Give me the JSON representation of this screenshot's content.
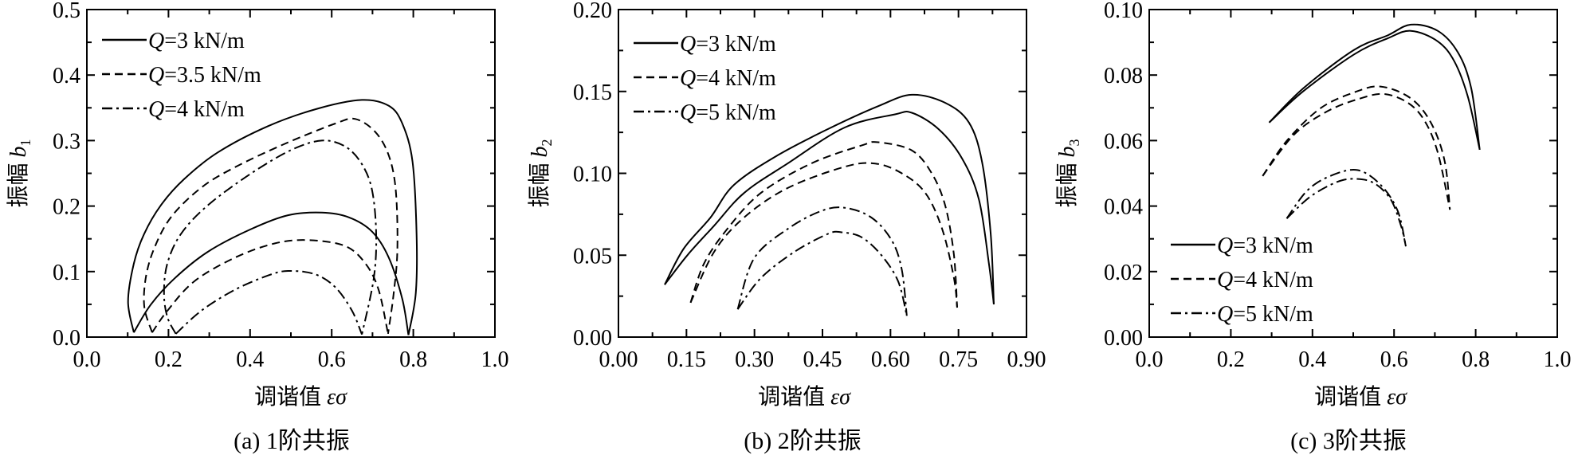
{
  "chart_data": [
    {
      "type": "line",
      "caption": "(a) 1阶共振",
      "xlabel_text": "调谐值",
      "xlabel_var": "εσ",
      "ylabel_text": "振幅",
      "ylabel_var": "b",
      "ylabel_sub": "1",
      "xlim": [
        0,
        1.0
      ],
      "ylim": [
        0,
        0.5
      ],
      "x_major": 0.2,
      "x_minor": 0.1,
      "y_major": 0.1,
      "y_minor": 0.05,
      "x_tick_labels": [
        "0.0",
        "0.2",
        "0.4",
        "0.6",
        "0.8",
        "1.0"
      ],
      "y_tick_labels": [
        "0.0",
        "0.1",
        "0.2",
        "0.3",
        "0.4",
        "0.5"
      ],
      "legend_position": "top-left",
      "series": [
        {
          "name": "Q=3 kN/m",
          "style": "solid",
          "upper": [
            [
              0.115,
              0.007
            ],
            [
              0.101,
              0.054
            ],
            [
              0.115,
              0.112
            ],
            [
              0.14,
              0.157
            ],
            [
              0.181,
              0.201
            ],
            [
              0.238,
              0.241
            ],
            [
              0.321,
              0.282
            ],
            [
              0.444,
              0.322
            ],
            [
              0.567,
              0.349
            ],
            [
              0.674,
              0.362
            ],
            [
              0.74,
              0.353
            ],
            [
              0.773,
              0.326
            ],
            [
              0.798,
              0.268
            ],
            [
              0.808,
              0.157
            ],
            [
              0.806,
              0.067
            ],
            [
              0.788,
              0.003
            ]
          ],
          "lower": [
            [
              0.115,
              0.007
            ],
            [
              0.156,
              0.049
            ],
            [
              0.214,
              0.089
            ],
            [
              0.296,
              0.13
            ],
            [
              0.403,
              0.165
            ],
            [
              0.493,
              0.186
            ],
            [
              0.576,
              0.19
            ],
            [
              0.641,
              0.183
            ],
            [
              0.699,
              0.161
            ],
            [
              0.74,
              0.121
            ],
            [
              0.773,
              0.058
            ],
            [
              0.788,
              0.003
            ]
          ]
        },
        {
          "name": "Q=3.5 kN/m",
          "style": "dashed",
          "upper": [
            [
              0.16,
              0.007
            ],
            [
              0.141,
              0.045
            ],
            [
              0.144,
              0.089
            ],
            [
              0.164,
              0.134
            ],
            [
              0.206,
              0.183
            ],
            [
              0.28,
              0.228
            ],
            [
              0.362,
              0.259
            ],
            [
              0.485,
              0.295
            ],
            [
              0.609,
              0.326
            ],
            [
              0.658,
              0.333
            ],
            [
              0.707,
              0.313
            ],
            [
              0.74,
              0.277
            ],
            [
              0.757,
              0.224
            ],
            [
              0.761,
              0.134
            ],
            [
              0.752,
              0.067
            ],
            [
              0.738,
              0.005
            ]
          ],
          "lower": [
            [
              0.16,
              0.007
            ],
            [
              0.197,
              0.04
            ],
            [
              0.263,
              0.085
            ],
            [
              0.362,
              0.121
            ],
            [
              0.46,
              0.143
            ],
            [
              0.543,
              0.148
            ],
            [
              0.633,
              0.139
            ],
            [
              0.683,
              0.112
            ],
            [
              0.715,
              0.072
            ],
            [
              0.738,
              0.005
            ]
          ]
        },
        {
          "name": "Q=4 kN/m",
          "style": "dashdot",
          "upper": [
            [
              0.218,
              0.005
            ],
            [
              0.197,
              0.031
            ],
            [
              0.189,
              0.067
            ],
            [
              0.197,
              0.112
            ],
            [
              0.23,
              0.157
            ],
            [
              0.296,
              0.201
            ],
            [
              0.403,
              0.25
            ],
            [
              0.502,
              0.286
            ],
            [
              0.576,
              0.3
            ],
            [
              0.633,
              0.291
            ],
            [
              0.674,
              0.264
            ],
            [
              0.699,
              0.224
            ],
            [
              0.709,
              0.157
            ],
            [
              0.703,
              0.089
            ],
            [
              0.674,
              0.004
            ]
          ],
          "lower": [
            [
              0.218,
              0.005
            ],
            [
              0.28,
              0.04
            ],
            [
              0.362,
              0.072
            ],
            [
              0.444,
              0.094
            ],
            [
              0.493,
              0.101
            ],
            [
              0.559,
              0.096
            ],
            [
              0.609,
              0.076
            ],
            [
              0.65,
              0.04
            ],
            [
              0.674,
              0.004
            ]
          ]
        }
      ]
    },
    {
      "type": "line",
      "caption": "(b) 2阶共振",
      "xlabel_text": "调谐值",
      "xlabel_var": "εσ",
      "ylabel_text": "振幅",
      "ylabel_var": "b",
      "ylabel_sub": "2",
      "xlim": [
        0,
        0.9
      ],
      "ylim": [
        0,
        0.2
      ],
      "x_major": 0.15,
      "x_minor": 0.075,
      "y_major": 0.05,
      "y_minor": 0.025,
      "x_tick_labels": [
        "0.00",
        "0.15",
        "0.30",
        "0.45",
        "0.60",
        "0.75",
        "0.90"
      ],
      "y_tick_labels": [
        "0.00",
        "0.05",
        "0.10",
        "0.15",
        "0.20"
      ],
      "legend_position": "top-left",
      "series": [
        {
          "name": "Q=3 kN/m",
          "style": "solid",
          "upper": [
            [
              0.102,
              0.032
            ],
            [
              0.144,
              0.054
            ],
            [
              0.203,
              0.073
            ],
            [
              0.255,
              0.093
            ],
            [
              0.351,
              0.111
            ],
            [
              0.462,
              0.127
            ],
            [
              0.573,
              0.141
            ],
            [
              0.647,
              0.148
            ],
            [
              0.721,
              0.143
            ],
            [
              0.773,
              0.131
            ],
            [
              0.802,
              0.107
            ],
            [
              0.821,
              0.063
            ],
            [
              0.828,
              0.02
            ]
          ],
          "lower": [
            [
              0.102,
              0.032
            ],
            [
              0.152,
              0.05
            ],
            [
              0.211,
              0.068
            ],
            [
              0.277,
              0.088
            ],
            [
              0.373,
              0.106
            ],
            [
              0.499,
              0.128
            ],
            [
              0.61,
              0.136
            ],
            [
              0.647,
              0.137
            ],
            [
              0.706,
              0.127
            ],
            [
              0.758,
              0.109
            ],
            [
              0.795,
              0.084
            ],
            [
              0.817,
              0.045
            ],
            [
              0.828,
              0.02
            ]
          ]
        },
        {
          "name": "Q=4 kN/m",
          "style": "dashed",
          "upper": [
            [
              0.159,
              0.021
            ],
            [
              0.189,
              0.045
            ],
            [
              0.24,
              0.066
            ],
            [
              0.314,
              0.088
            ],
            [
              0.425,
              0.106
            ],
            [
              0.536,
              0.117
            ],
            [
              0.573,
              0.119
            ],
            [
              0.647,
              0.114
            ],
            [
              0.691,
              0.1
            ],
            [
              0.721,
              0.08
            ],
            [
              0.74,
              0.05
            ],
            [
              0.747,
              0.018
            ]
          ],
          "lower": [
            [
              0.159,
              0.021
            ],
            [
              0.211,
              0.052
            ],
            [
              0.277,
              0.073
            ],
            [
              0.373,
              0.091
            ],
            [
              0.499,
              0.104
            ],
            [
              0.566,
              0.106
            ],
            [
              0.625,
              0.1
            ],
            [
              0.677,
              0.088
            ],
            [
              0.714,
              0.066
            ],
            [
              0.74,
              0.036
            ],
            [
              0.747,
              0.018
            ]
          ]
        },
        {
          "name": "Q=5 kN/m",
          "style": "dashdot",
          "upper": [
            [
              0.263,
              0.017
            ],
            [
              0.299,
              0.048
            ],
            [
              0.373,
              0.066
            ],
            [
              0.447,
              0.077
            ],
            [
              0.499,
              0.079
            ],
            [
              0.558,
              0.073
            ],
            [
              0.603,
              0.059
            ],
            [
              0.625,
              0.041
            ],
            [
              0.636,
              0.013
            ]
          ],
          "lower": [
            [
              0.263,
              0.017
            ],
            [
              0.314,
              0.036
            ],
            [
              0.388,
              0.052
            ],
            [
              0.462,
              0.063
            ],
            [
              0.492,
              0.064
            ],
            [
              0.536,
              0.061
            ],
            [
              0.58,
              0.05
            ],
            [
              0.617,
              0.034
            ],
            [
              0.636,
              0.013
            ]
          ]
        }
      ]
    },
    {
      "type": "line",
      "caption": "(c) 3阶共振",
      "xlabel_text": "调谐值",
      "xlabel_var": "εσ",
      "ylabel_text": "振幅",
      "ylabel_var": "b",
      "ylabel_sub": "3",
      "xlim": [
        0,
        1.0
      ],
      "ylim": [
        0,
        0.1
      ],
      "x_major": 0.2,
      "x_minor": 0.1,
      "y_major": 0.02,
      "y_minor": 0.01,
      "x_tick_labels": [
        "0.0",
        "0.2",
        "0.4",
        "0.6",
        "0.8",
        "1.0"
      ],
      "y_tick_labels": [
        "0.00",
        "0.02",
        "0.04",
        "0.06",
        "0.08",
        "0.10"
      ],
      "legend_position": "bottom-left",
      "series": [
        {
          "name": "Q=3 kN/m",
          "style": "solid",
          "upper": [
            [
              0.294,
              0.0655
            ],
            [
              0.378,
              0.076
            ],
            [
              0.502,
              0.0877
            ],
            [
              0.584,
              0.0921
            ],
            [
              0.641,
              0.0954
            ],
            [
              0.707,
              0.0935
            ],
            [
              0.757,
              0.0868
            ],
            [
              0.789,
              0.076
            ],
            [
              0.81,
              0.0572
            ]
          ],
          "lower": [
            [
              0.294,
              0.0655
            ],
            [
              0.378,
              0.0751
            ],
            [
              0.502,
              0.0863
            ],
            [
              0.584,
              0.0912
            ],
            [
              0.641,
              0.0935
            ],
            [
              0.707,
              0.0903
            ],
            [
              0.748,
              0.0841
            ],
            [
              0.781,
              0.0733
            ],
            [
              0.81,
              0.0572
            ]
          ]
        },
        {
          "name": "Q=4 kN/m",
          "style": "dashed",
          "upper": [
            [
              0.278,
              0.0492
            ],
            [
              0.337,
              0.0599
            ],
            [
              0.419,
              0.0698
            ],
            [
              0.502,
              0.0747
            ],
            [
              0.567,
              0.0765
            ],
            [
              0.641,
              0.0729
            ],
            [
              0.691,
              0.0653
            ],
            [
              0.724,
              0.0537
            ],
            [
              0.737,
              0.0389
            ]
          ],
          "lower": [
            [
              0.278,
              0.0492
            ],
            [
              0.354,
              0.0617
            ],
            [
              0.436,
              0.0689
            ],
            [
              0.518,
              0.0729
            ],
            [
              0.576,
              0.0742
            ],
            [
              0.633,
              0.0716
            ],
            [
              0.674,
              0.0662
            ],
            [
              0.707,
              0.0564
            ],
            [
              0.737,
              0.0389
            ]
          ]
        },
        {
          "name": "Q=5 kN/m",
          "style": "dashdot",
          "upper": [
            [
              0.337,
              0.0362
            ],
            [
              0.387,
              0.0447
            ],
            [
              0.444,
              0.0492
            ],
            [
              0.51,
              0.051
            ],
            [
              0.567,
              0.0465
            ],
            [
              0.609,
              0.0385
            ],
            [
              0.629,
              0.0277
            ]
          ],
          "lower": [
            [
              0.337,
              0.0362
            ],
            [
              0.395,
              0.0429
            ],
            [
              0.461,
              0.0474
            ],
            [
              0.506,
              0.0483
            ],
            [
              0.551,
              0.047
            ],
            [
              0.592,
              0.042
            ],
            [
              0.617,
              0.034
            ],
            [
              0.629,
              0.0277
            ]
          ]
        }
      ]
    }
  ]
}
